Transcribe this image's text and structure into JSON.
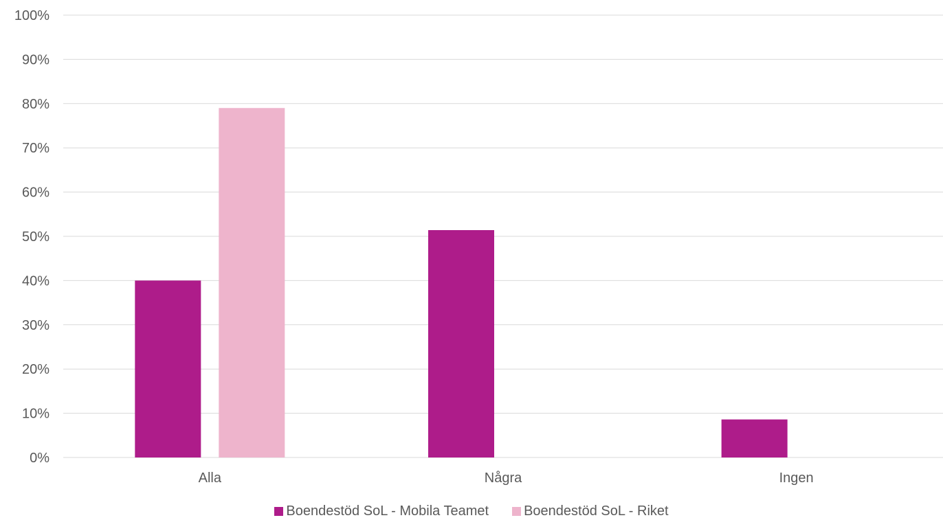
{
  "chart_data": {
    "type": "bar",
    "categories": [
      "Alla",
      "Några",
      "Ingen"
    ],
    "series": [
      {
        "name": "Boendestöd SoL - Mobila Teamet",
        "color": "#AE1C8A",
        "values": [
          40,
          51.4,
          8.6
        ]
      },
      {
        "name": "Boendestöd SoL - Riket",
        "color": "#EEB4CC",
        "values": [
          79,
          null,
          null
        ]
      }
    ],
    "ylim": [
      0,
      100
    ],
    "yticks": [
      0,
      10,
      20,
      30,
      40,
      50,
      60,
      70,
      80,
      90,
      100
    ],
    "ytick_labels": [
      "0%",
      "10%",
      "20%",
      "30%",
      "40%",
      "50%",
      "60%",
      "70%",
      "80%",
      "90%",
      "100%"
    ],
    "grid": true,
    "legend_position": "bottom",
    "gridline_color": "#D9D9D9"
  }
}
